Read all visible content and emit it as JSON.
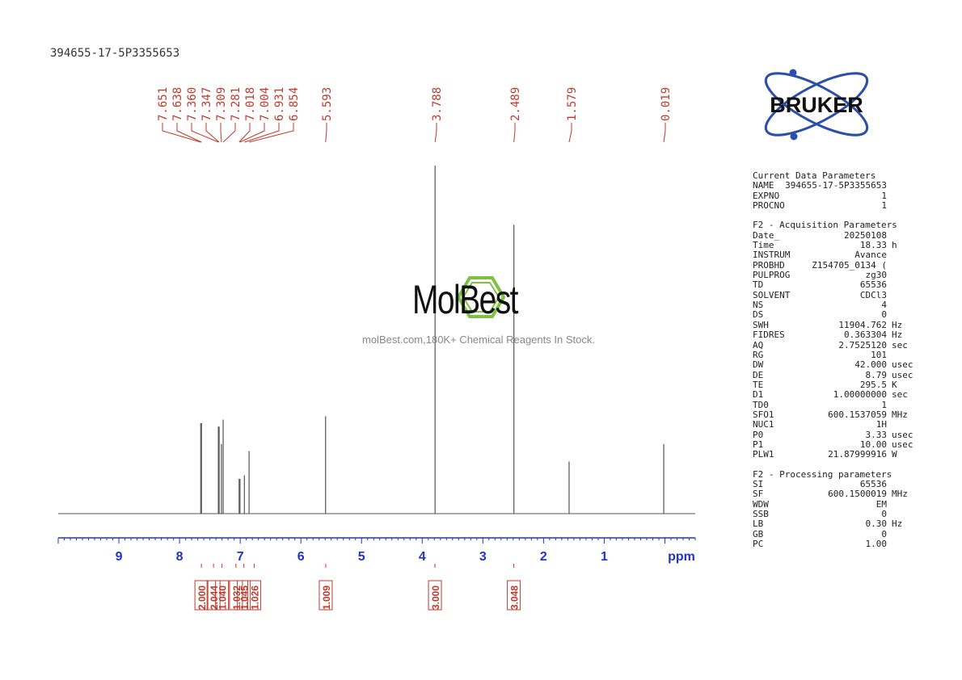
{
  "sample_id": "394655-17-5P3355653",
  "logo_text": "BRUKER",
  "watermark": {
    "name": "MolBest",
    "tagline": "molBest.com,180K+ Chemical Reagents In Stock."
  },
  "colors": {
    "peak_label": "#c0392b",
    "integral": "#c0392b",
    "axis": "#2233cc",
    "spectrum": "#555555",
    "logo_blue": "#2c4fa8",
    "watermark_green": "#7dc242"
  },
  "params": {
    "current_header": "Current Data Parameters",
    "current": [
      {
        "label": "NAME",
        "value": "394655-17-5P3355653",
        "unit": ""
      },
      {
        "label": "EXPNO",
        "value": "1",
        "unit": ""
      },
      {
        "label": "PROCNO",
        "value": "1",
        "unit": ""
      }
    ],
    "acq_header": "F2 - Acquisition Parameters",
    "acquisition": [
      {
        "label": "Date_",
        "value": "20250108",
        "unit": ""
      },
      {
        "label": "Time",
        "value": "18.33",
        "unit": "h"
      },
      {
        "label": "INSTRUM",
        "value": "Avance",
        "unit": ""
      },
      {
        "label": "PROBHD",
        "value": "Z154705_0134 (",
        "unit": ""
      },
      {
        "label": "PULPROG",
        "value": "zg30",
        "unit": ""
      },
      {
        "label": "TD",
        "value": "65536",
        "unit": ""
      },
      {
        "label": "SOLVENT",
        "value": "CDCl3",
        "unit": ""
      },
      {
        "label": "NS",
        "value": "4",
        "unit": ""
      },
      {
        "label": "DS",
        "value": "0",
        "unit": ""
      },
      {
        "label": "SWH",
        "value": "11904.762",
        "unit": "Hz"
      },
      {
        "label": "FIDRES",
        "value": "0.363304",
        "unit": "Hz"
      },
      {
        "label": "AQ",
        "value": "2.7525120",
        "unit": "sec"
      },
      {
        "label": "RG",
        "value": "101",
        "unit": ""
      },
      {
        "label": "DW",
        "value": "42.000",
        "unit": "usec"
      },
      {
        "label": "DE",
        "value": "8.79",
        "unit": "usec"
      },
      {
        "label": "TE",
        "value": "295.5",
        "unit": "K"
      },
      {
        "label": "D1",
        "value": "1.00000000",
        "unit": "sec"
      },
      {
        "label": "TD0",
        "value": "1",
        "unit": ""
      },
      {
        "label": "SFO1",
        "value": "600.1537059",
        "unit": "MHz"
      },
      {
        "label": "NUC1",
        "value": "1H",
        "unit": ""
      },
      {
        "label": "P0",
        "value": "3.33",
        "unit": "usec"
      },
      {
        "label": "P1",
        "value": "10.00",
        "unit": "usec"
      },
      {
        "label": "PLW1",
        "value": "21.87999916",
        "unit": "W"
      }
    ],
    "proc_header": "F2 - Processing parameters",
    "processing": [
      {
        "label": "SI",
        "value": "65536",
        "unit": ""
      },
      {
        "label": "SF",
        "value": "600.1500019",
        "unit": "MHz"
      },
      {
        "label": "WDW",
        "value": "EM",
        "unit": ""
      },
      {
        "label": "SSB",
        "value": "0",
        "unit": ""
      },
      {
        "label": "LB",
        "value": "0.30",
        "unit": "Hz"
      },
      {
        "label": "GB",
        "value": "0",
        "unit": ""
      },
      {
        "label": "PC",
        "value": "1.00",
        "unit": ""
      }
    ]
  },
  "chart_data": {
    "type": "line",
    "xlabel": "ppm",
    "xlim": [
      10.0,
      -0.5
    ],
    "x_ticks": [
      "9",
      "8",
      "7",
      "6",
      "5",
      "4",
      "3",
      "2",
      "1"
    ],
    "x_tick_values": [
      9,
      8,
      7,
      6,
      5,
      4,
      3,
      2,
      1
    ],
    "peak_labels": [
      "7.651",
      "7.638",
      "7.360",
      "7.347",
      "7.309",
      "7.281",
      "7.018",
      "7.004",
      "6.931",
      "6.854",
      "5.593",
      "3.788",
      "2.489",
      "1.579",
      "0.019"
    ],
    "peaks": [
      {
        "ppm": 7.651,
        "height": 0.26
      },
      {
        "ppm": 7.638,
        "height": 0.26
      },
      {
        "ppm": 7.36,
        "height": 0.25
      },
      {
        "ppm": 7.347,
        "height": 0.25
      },
      {
        "ppm": 7.309,
        "height": 0.2
      },
      {
        "ppm": 7.281,
        "height": 0.27
      },
      {
        "ppm": 7.018,
        "height": 0.1
      },
      {
        "ppm": 7.004,
        "height": 0.1
      },
      {
        "ppm": 6.931,
        "height": 0.11
      },
      {
        "ppm": 6.854,
        "height": 0.18
      },
      {
        "ppm": 5.593,
        "height": 0.28
      },
      {
        "ppm": 3.788,
        "height": 1.0
      },
      {
        "ppm": 2.489,
        "height": 0.83
      },
      {
        "ppm": 1.579,
        "height": 0.15
      },
      {
        "ppm": 0.019,
        "height": 0.2
      }
    ],
    "integrals": [
      {
        "ppm": 7.64,
        "value": "2.000"
      },
      {
        "ppm": 7.44,
        "value": "2.044"
      },
      {
        "ppm": 7.3,
        "value": "1.040"
      },
      {
        "ppm": 7.07,
        "value": "1.032"
      },
      {
        "ppm": 6.94,
        "value": "1.045"
      },
      {
        "ppm": 6.77,
        "value": "1.026"
      },
      {
        "ppm": 5.59,
        "value": "1.009"
      },
      {
        "ppm": 3.79,
        "value": "3.000"
      },
      {
        "ppm": 2.49,
        "value": "3.048"
      }
    ]
  }
}
